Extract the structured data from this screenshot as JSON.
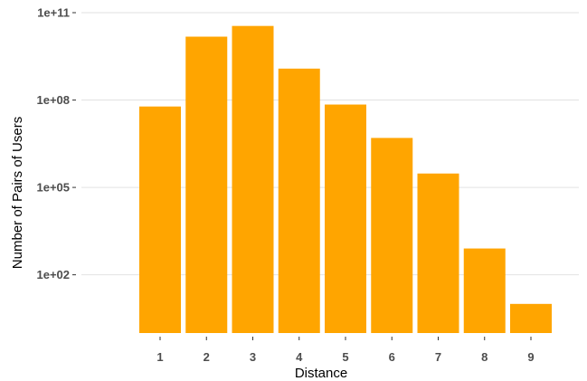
{
  "chart_data": {
    "type": "bar",
    "xlabel": "Distance",
    "ylabel": "Number of Pairs of Users",
    "y_scale": "log10",
    "ylim": [
      1,
      100000000000
    ],
    "y_ticks": [
      100,
      100000,
      100000000,
      100000000000
    ],
    "y_tick_labels": [
      "1e+02",
      "1e+05",
      "1e+08",
      "1e+11"
    ],
    "categories": [
      "1",
      "2",
      "3",
      "4",
      "5",
      "6",
      "7",
      "8",
      "9"
    ],
    "values": [
      60000000,
      15000000000,
      35000000000,
      1200000000,
      70000000,
      5000000,
      300000,
      800,
      10
    ],
    "grid": true,
    "bar_color": "#ffa500",
    "legend": "none"
  }
}
